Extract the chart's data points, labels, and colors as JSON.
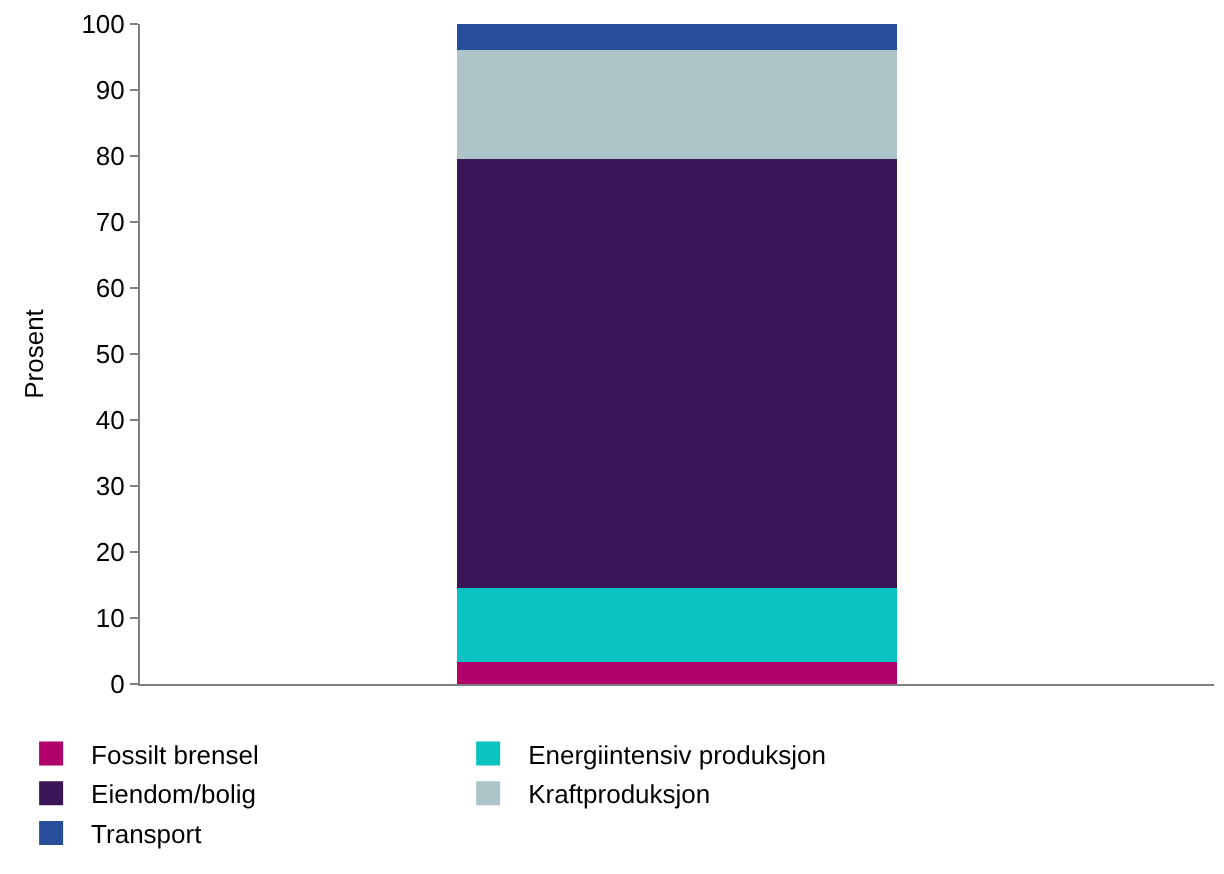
{
  "chart_data": {
    "type": "bar",
    "stacked": true,
    "ylabel": "Prosent",
    "categories": [
      null
    ],
    "series": [
      {
        "name": "Fossilt brensel",
        "color": "#b0006a",
        "values": [
          3.4
        ]
      },
      {
        "name": "Energiintensiv produksjon",
        "color": "#0ac2c2",
        "values": [
          11.2
        ]
      },
      {
        "name": "Eiendom/bolig",
        "color": "#3a1659",
        "values": [
          65.0
        ]
      },
      {
        "name": "Kraftproduksjon",
        "color": "#adc4c9",
        "values": [
          16.5
        ]
      },
      {
        "name": "Transport",
        "color": "#264e9a",
        "values": [
          3.9
        ]
      }
    ],
    "ylim": [
      0,
      100
    ],
    "yticks": [
      0,
      10,
      20,
      30,
      40,
      50,
      60,
      70,
      80,
      90,
      100
    ],
    "legend": "bottom"
  }
}
